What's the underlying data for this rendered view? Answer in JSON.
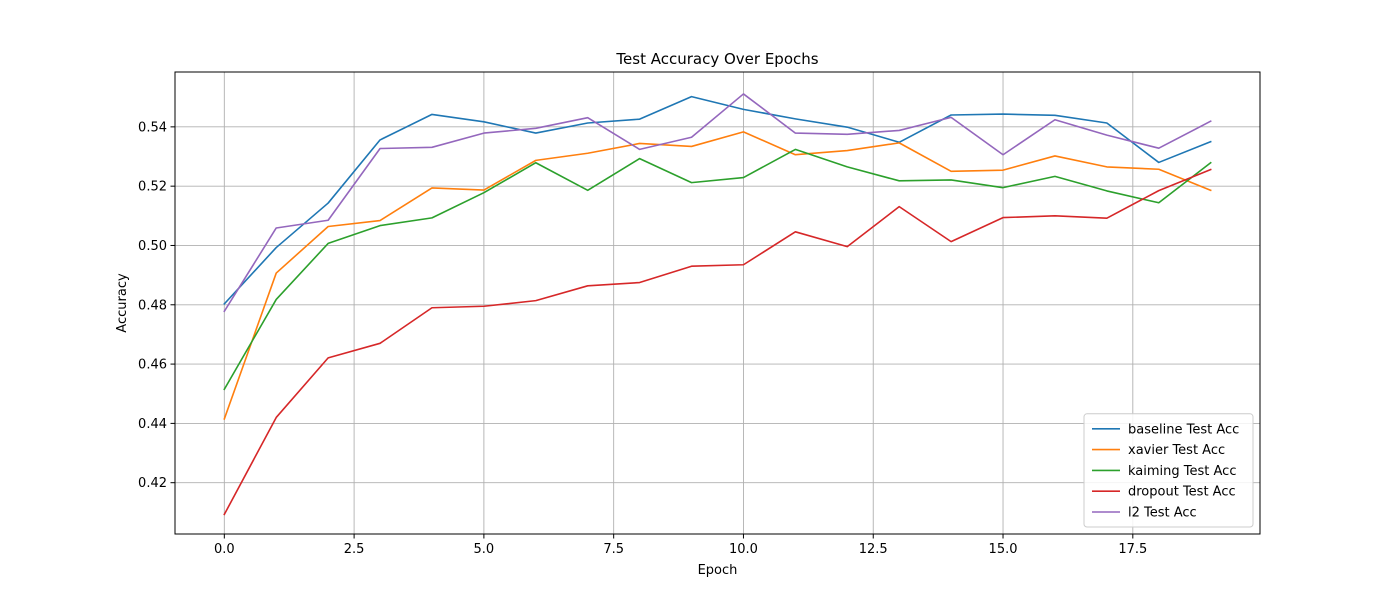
{
  "chart_data": {
    "type": "line",
    "title": "Test Accuracy Over Epochs",
    "xlabel": "Epoch",
    "ylabel": "Accuracy",
    "xlim": [
      -0.95,
      19.95
    ],
    "ylim": [
      0.4027,
      0.5585
    ],
    "x_ticks": [
      0.0,
      2.5,
      5.0,
      7.5,
      10.0,
      12.5,
      15.0,
      17.5
    ],
    "x_tick_labels": [
      "0.0",
      "2.5",
      "5.0",
      "7.5",
      "10.0",
      "12.5",
      "15.0",
      "17.5"
    ],
    "y_ticks": [
      0.42,
      0.44,
      0.46,
      0.48,
      0.5,
      0.52,
      0.54
    ],
    "y_tick_labels": [
      "0.42",
      "0.44",
      "0.46",
      "0.48",
      "0.50",
      "0.52",
      "0.54"
    ],
    "grid": true,
    "legend_position": "bottom-right",
    "x": [
      0,
      1,
      2,
      3,
      4,
      5,
      6,
      7,
      8,
      9,
      10,
      11,
      12,
      13,
      14,
      15,
      16,
      17,
      18,
      19
    ],
    "series": [
      {
        "name": "baseline Test Acc",
        "color": "#1f77b4",
        "values": [
          0.4803,
          0.4993,
          0.5143,
          0.5356,
          0.5442,
          0.5417,
          0.5379,
          0.5413,
          0.5426,
          0.5502,
          0.5459,
          0.5427,
          0.5399,
          0.5348,
          0.544,
          0.5443,
          0.5439,
          0.5413,
          0.528,
          0.535
        ]
      },
      {
        "name": "xavier Test Acc",
        "color": "#ff7f0e",
        "values": [
          0.4415,
          0.4907,
          0.5064,
          0.5084,
          0.5194,
          0.5187,
          0.5287,
          0.5311,
          0.5344,
          0.5334,
          0.5383,
          0.5306,
          0.532,
          0.5346,
          0.525,
          0.5254,
          0.5302,
          0.5265,
          0.5257,
          0.5186
        ]
      },
      {
        "name": "kaiming Test Acc",
        "color": "#2ca02c",
        "values": [
          0.4515,
          0.4818,
          0.5007,
          0.5067,
          0.5093,
          0.5178,
          0.5279,
          0.5186,
          0.5293,
          0.5212,
          0.5229,
          0.5324,
          0.5265,
          0.5218,
          0.5221,
          0.5195,
          0.5233,
          0.5184,
          0.5144,
          0.5279
        ]
      },
      {
        "name": "dropout Test Acc",
        "color": "#d62728",
        "values": [
          0.4093,
          0.442,
          0.4621,
          0.467,
          0.479,
          0.4795,
          0.4814,
          0.4864,
          0.4875,
          0.493,
          0.4935,
          0.5046,
          0.4996,
          0.5131,
          0.5013,
          0.5094,
          0.51,
          0.5092,
          0.5185,
          0.5256
        ]
      },
      {
        "name": "l2 Test Acc",
        "color": "#9467bd",
        "values": [
          0.4778,
          0.5059,
          0.5085,
          0.5327,
          0.5331,
          0.5379,
          0.5395,
          0.5431,
          0.5324,
          0.5365,
          0.5511,
          0.5379,
          0.5375,
          0.5388,
          0.5432,
          0.5306,
          0.5424,
          0.5372,
          0.5328,
          0.5419
        ]
      }
    ]
  }
}
